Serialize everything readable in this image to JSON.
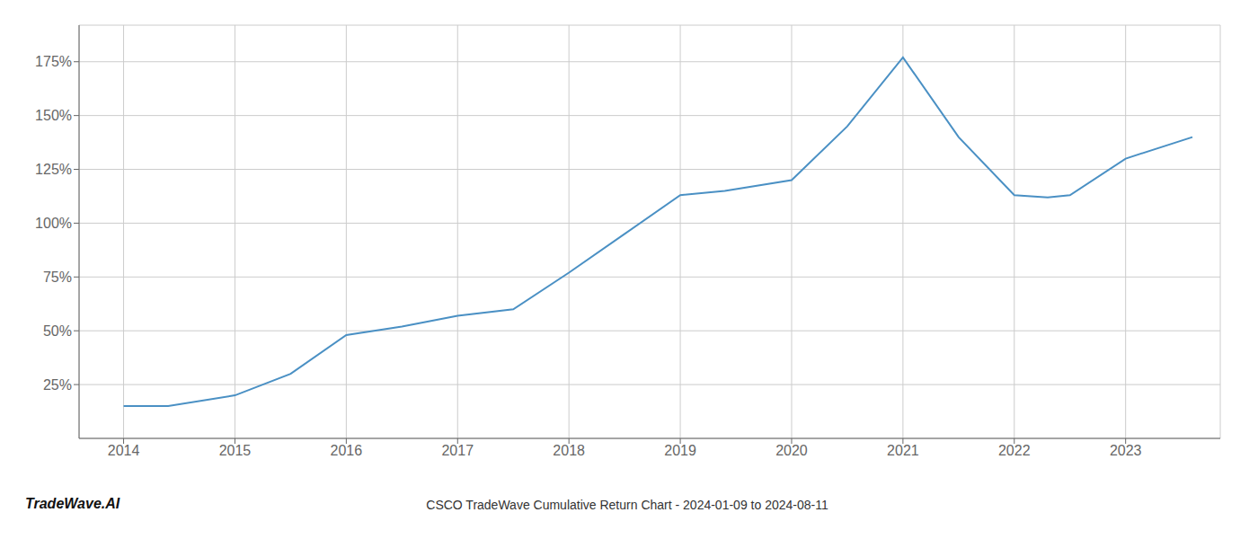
{
  "chart_data": {
    "type": "line",
    "title": "CSCO TradeWave Cumulative Return Chart - 2024-01-09 to 2024-08-11",
    "annotations": [
      "TradeWave.AI"
    ],
    "x": [
      2014.0,
      2014.4,
      2015.0,
      2015.5,
      2016.0,
      2016.5,
      2017.0,
      2017.5,
      2018.0,
      2018.5,
      2019.0,
      2019.4,
      2020.0,
      2020.5,
      2021.0,
      2021.5,
      2022.0,
      2022.3,
      2022.5,
      2023.0,
      2023.6
    ],
    "values": [
      15,
      15,
      20,
      30,
      48,
      52,
      57,
      60,
      77,
      95,
      113,
      115,
      120,
      145,
      177,
      140,
      113,
      112,
      113,
      130,
      140
    ],
    "color": "#4a90c4",
    "xlim": [
      2013.6,
      2023.85
    ],
    "xticks": [
      2014,
      2015,
      2016,
      2017,
      2018,
      2019,
      2020,
      2021,
      2022,
      2023
    ],
    "ylim": [
      0,
      192
    ],
    "yticks": [
      {
        "value": 25,
        "label": "25%"
      },
      {
        "value": 50,
        "label": "50%"
      },
      {
        "value": 75,
        "label": "75%"
      },
      {
        "value": 100,
        "label": "100%"
      },
      {
        "value": 125,
        "label": "125%"
      },
      {
        "value": 150,
        "label": "150%"
      },
      {
        "value": 175,
        "label": "175%"
      }
    ],
    "grid": true
  }
}
